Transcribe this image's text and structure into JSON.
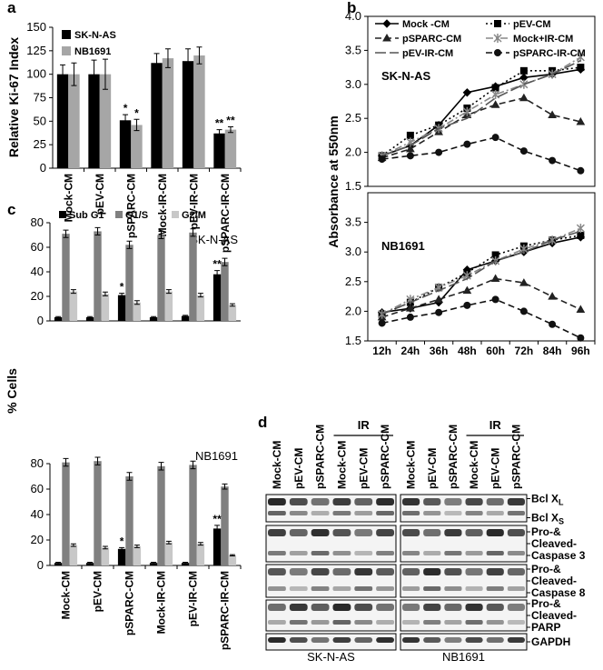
{
  "chart_data": [
    {
      "type": "bar",
      "label": "a",
      "ylabel": "Relative Ki-67 Index",
      "categories": [
        "Mock-CM",
        "pEV-CM",
        "pSPARC-CM",
        "Mock-IR-CM",
        "pEV-IR-CM",
        "pSPARC-IR-CM"
      ],
      "ylim": [
        0,
        150
      ],
      "yticks": [
        0,
        25,
        50,
        75,
        100,
        125,
        150
      ],
      "legend": "upper left",
      "series": [
        {
          "name": "SK-N-AS",
          "color": "#000000",
          "values": [
            100,
            100,
            51,
            112,
            114,
            37
          ],
          "errors": [
            10,
            15,
            6,
            10,
            13,
            4
          ],
          "significance": [
            null,
            null,
            "*",
            null,
            null,
            "**"
          ]
        },
        {
          "name": "NB1691",
          "color": "#a6a6a6",
          "values": [
            100,
            100,
            46,
            117,
            120,
            41
          ],
          "errors": [
            12,
            16,
            6,
            10,
            9,
            3
          ],
          "significance": [
            null,
            null,
            "*",
            null,
            null,
            "**"
          ]
        }
      ]
    },
    {
      "type": "line",
      "label": "b",
      "subtitle": "SK-N-AS",
      "ylabel": "Absorbance at 550nm",
      "ylim": [
        1.5,
        4.0
      ],
      "yticks": [
        1.5,
        {
          "value": 2,
          "label": "2.0"
        },
        2.5,
        {
          "value": 3,
          "label": "3.0"
        },
        3.5,
        {
          "value": 4,
          "label": "4.0"
        }
      ],
      "legend": "upper center",
      "series": [
        {
          "name": "Mock -CM",
          "color": "#000000",
          "marker": "diamond",
          "dash": "solid",
          "values": [
            1.95,
            2.1,
            2.4,
            2.88,
            2.97,
            3.1,
            3.15,
            3.22
          ]
        },
        {
          "name": "pEV-CM",
          "color": "#000000",
          "marker": "square",
          "dash": "dotted",
          "values": [
            1.95,
            2.25,
            2.4,
            2.65,
            2.95,
            3.2,
            3.2,
            3.25
          ]
        },
        {
          "name": "pSPARC-CM",
          "color": "#222222",
          "marker": "triangle",
          "dash": "dashed",
          "values": [
            1.92,
            2.05,
            2.3,
            2.55,
            2.7,
            2.8,
            2.55,
            2.45
          ]
        },
        {
          "name": "Mock+IR-CM",
          "color": "#888888",
          "marker": "star",
          "dash": "dashdot",
          "values": [
            1.95,
            2.15,
            2.35,
            2.6,
            2.85,
            3.0,
            3.15,
            3.4
          ]
        },
        {
          "name": "pEV-IR-CM",
          "color": "#555555",
          "marker": "none",
          "dash": "longdash",
          "values": [
            1.95,
            2.1,
            2.35,
            2.5,
            2.8,
            3.0,
            3.15,
            3.35
          ]
        },
        {
          "name": "pSPARC-IR-CM",
          "color": "#111111",
          "marker": "circle",
          "dash": "dashed",
          "values": [
            1.9,
            1.95,
            2.0,
            2.12,
            2.22,
            2.02,
            1.88,
            1.73
          ]
        }
      ]
    },
    {
      "type": "line",
      "subtitle": "NB1691",
      "categories": [
        "12h",
        "24h",
        "36h",
        "48h",
        "60h",
        "72h",
        "84h",
        "96h"
      ],
      "ylim": [
        1.5,
        4.0
      ],
      "yticks": [
        1.5,
        {
          "value": 2,
          "label": "2.0"
        },
        2.5,
        {
          "value": 3,
          "label": "3.0"
        },
        3.5
      ],
      "series": [
        {
          "color": "#000000",
          "marker": "diamond",
          "dash": "solid",
          "values": [
            1.98,
            2.05,
            2.15,
            2.7,
            2.85,
            3.0,
            3.15,
            3.25
          ]
        },
        {
          "color": "#000000",
          "marker": "square",
          "dash": "dotted",
          "values": [
            1.95,
            2.15,
            2.4,
            2.65,
            2.95,
            3.1,
            3.2,
            3.28
          ]
        },
        {
          "color": "#222222",
          "marker": "triangle",
          "dash": "dashed",
          "values": [
            1.9,
            2.05,
            2.2,
            2.35,
            2.55,
            2.48,
            2.25,
            2.03
          ]
        },
        {
          "color": "#888888",
          "marker": "star",
          "dash": "dashdot",
          "values": [
            1.95,
            2.2,
            2.4,
            2.6,
            2.85,
            3.05,
            3.2,
            3.4
          ]
        },
        {
          "color": "#555555",
          "marker": "none",
          "dash": "longdash",
          "values": [
            1.95,
            2.15,
            2.35,
            2.55,
            2.85,
            3.0,
            3.2,
            3.35
          ]
        },
        {
          "color": "#111111",
          "marker": "circle",
          "dash": "dashed",
          "values": [
            1.8,
            1.9,
            1.98,
            2.1,
            2.2,
            2.0,
            1.78,
            1.55
          ]
        }
      ]
    },
    {
      "type": "bar",
      "label": "c",
      "subtitle": "SK-N-AS",
      "ylabel": "% Cells",
      "ylim": [
        0,
        80
      ],
      "yticks": [
        0,
        20,
        40,
        60,
        80
      ],
      "legend": "top",
      "series": [
        {
          "name": "Sub G1",
          "color": "#000000",
          "values": [
            3,
            3,
            21,
            3,
            4,
            38
          ],
          "errors": [
            0.5,
            0.5,
            1.5,
            0.5,
            0.5,
            3
          ],
          "significance": [
            null,
            null,
            "*",
            null,
            null,
            "**"
          ]
        },
        {
          "name": "G1/S",
          "color": "#808080",
          "values": [
            71,
            73,
            62,
            70,
            72,
            48
          ],
          "errors": [
            3,
            3,
            3,
            3,
            3,
            3
          ],
          "significance": [
            null,
            null,
            null,
            null,
            null,
            null
          ]
        },
        {
          "name": "G2/M",
          "color": "#c8c8c8",
          "values": [
            24,
            22,
            15,
            24,
            21,
            13
          ],
          "errors": [
            1.5,
            1.5,
            1.5,
            1.5,
            1.5,
            1
          ],
          "significance": [
            null,
            null,
            null,
            null,
            null,
            null
          ]
        }
      ]
    },
    {
      "type": "bar",
      "subtitle": "NB1691",
      "categories": [
        "Mock-CM",
        "pEV-CM",
        "pSPARC-CM",
        "Mock-IR-CM",
        "pEV-IR-CM",
        "pSPARC-IR-CM"
      ],
      "ylim": [
        0,
        80
      ],
      "yticks": [
        0,
        20,
        40,
        60,
        80
      ],
      "series": [
        {
          "color": "#000000",
          "values": [
            2,
            2,
            13,
            2,
            2,
            29
          ],
          "errors": [
            0.5,
            0.5,
            1,
            0.5,
            0.5,
            2.5
          ],
          "significance": [
            null,
            null,
            "*",
            null,
            null,
            "**"
          ]
        },
        {
          "color": "#808080",
          "values": [
            81,
            82,
            70,
            78,
            79,
            62
          ],
          "errors": [
            3,
            3,
            3,
            3,
            3,
            2
          ],
          "significance": [
            null,
            null,
            null,
            null,
            null,
            null
          ]
        },
        {
          "color": "#c8c8c8",
          "values": [
            16,
            14,
            15,
            18,
            17,
            8
          ],
          "errors": [
            1,
            1,
            1,
            1,
            1,
            0.5
          ],
          "significance": [
            null,
            null,
            null,
            null,
            null,
            null
          ]
        }
      ]
    }
  ],
  "blot": {
    "label": "d",
    "columns": [
      "Mock-CM",
      "pEV-CM",
      "pSPARC-CM",
      "Mock-CM",
      "pEV-CM",
      "pSPARC-CM"
    ],
    "treatment": "IR",
    "rows": [
      {
        "lines": [
          {
            "text": "Bcl X",
            "sub": "L"
          },
          {
            "text": "Bcl X",
            "sub": "S"
          }
        ]
      },
      {
        "lines": [
          {
            "text": "Pro-&"
          },
          {
            "text": "Cleaved-"
          },
          {
            "text": "Caspase 3"
          }
        ]
      },
      {
        "lines": [
          {
            "text": "Pro-&"
          },
          {
            "text": "Cleaved-"
          },
          {
            "text": "Caspase 8"
          }
        ]
      },
      {
        "lines": [
          {
            "text": "Pro-&"
          },
          {
            "text": "Cleaved-"
          },
          {
            "text": "PARP"
          }
        ]
      },
      {
        "lines": [
          {
            "text": "GAPDH"
          }
        ]
      }
    ],
    "cell_lines": [
      "SK-N-AS",
      "NB1691"
    ]
  }
}
